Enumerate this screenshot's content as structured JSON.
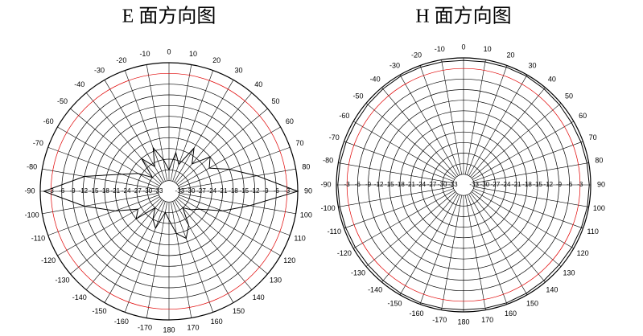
{
  "chart_data": [
    {
      "type": "polar",
      "title": "E 面方向图",
      "x": [
        -180,
        -170,
        -160,
        -150,
        -140,
        -130,
        -120,
        -110,
        -100,
        -90,
        -80,
        -70,
        -60,
        -50,
        -40,
        -30,
        -20,
        -10,
        0,
        10,
        20,
        30,
        40,
        50,
        60,
        70,
        80,
        90,
        100,
        110,
        120,
        130,
        140,
        150,
        160,
        170
      ],
      "values": [
        -28,
        -30,
        -25,
        -27,
        -30,
        -24,
        -26,
        -20,
        -12,
        -1,
        -12,
        -22,
        -26,
        -30,
        -24,
        -28,
        -23,
        -27,
        -30,
        -25,
        -28,
        -22,
        -26,
        -21,
        -23,
        -18,
        -11,
        0,
        -13,
        -20,
        -26,
        -28,
        -30,
        -25,
        -22,
        -24
      ],
      "color": "#000000",
      "rlim": [
        -36,
        0
      ],
      "rticks": [
        -3,
        -6,
        -9,
        -12,
        -15,
        -18,
        -21,
        -24,
        -27,
        -30,
        -33
      ],
      "thetaticks": [
        0,
        10,
        20,
        30,
        40,
        50,
        60,
        70,
        80,
        90,
        100,
        110,
        120,
        130,
        140,
        150,
        160,
        170,
        180,
        -170,
        -160,
        -150,
        -140,
        -130,
        -120,
        -110,
        -100,
        -90,
        -80,
        -70,
        -60,
        -50,
        -40,
        -30,
        -20,
        -10
      ],
      "reference_ring": -3,
      "reference_color": "#e00000",
      "grid": true
    },
    {
      "type": "polar",
      "title": "H 面方向图",
      "x": [
        -180,
        -170,
        -160,
        -150,
        -140,
        -130,
        -120,
        -110,
        -100,
        -90,
        -80,
        -70,
        -60,
        -50,
        -40,
        -30,
        -20,
        -10,
        0,
        10,
        20,
        30,
        40,
        50,
        60,
        70,
        80,
        90,
        100,
        110,
        120,
        130,
        140,
        150,
        160,
        170
      ],
      "values": [
        -0.6,
        -0.5,
        -0.4,
        -0.5,
        -0.6,
        -0.7,
        -0.6,
        -0.5,
        -0.4,
        -0.4,
        -0.5,
        -0.6,
        -0.7,
        -0.6,
        -0.5,
        -0.4,
        -0.5,
        -0.6,
        -0.7,
        -0.6,
        -0.5,
        -0.4,
        -0.5,
        -0.6,
        -0.7,
        -0.6,
        -0.5,
        -0.4,
        -0.4,
        -0.5,
        -0.6,
        -0.7,
        -0.6,
        -0.5,
        -0.4,
        -0.5
      ],
      "color": "#000000",
      "rlim": [
        -36,
        0
      ],
      "rticks": [
        -3,
        -6,
        -9,
        -12,
        -15,
        -18,
        -21,
        -24,
        -27,
        -30,
        -33
      ],
      "thetaticks": [
        0,
        10,
        20,
        30,
        40,
        50,
        60,
        70,
        80,
        90,
        100,
        110,
        120,
        130,
        140,
        150,
        160,
        170,
        180,
        -170,
        -160,
        -150,
        -140,
        -130,
        -120,
        -110,
        -100,
        -90,
        -80,
        -70,
        -60,
        -50,
        -40,
        -30,
        -20,
        -10
      ],
      "reference_ring": -3,
      "reference_color": "#e00000",
      "grid": true
    }
  ]
}
